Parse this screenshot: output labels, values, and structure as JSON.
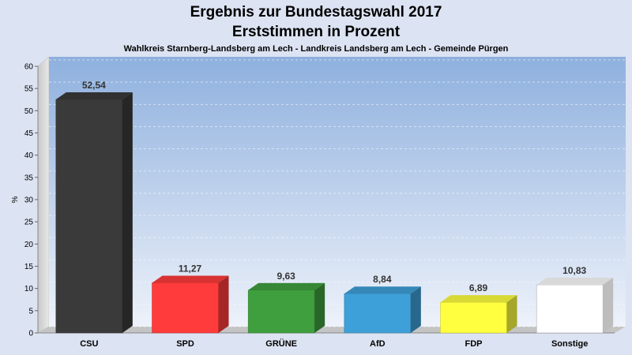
{
  "chart_data": {
    "type": "bar",
    "title": "Ergebnis zur Bundestagswahl 2017",
    "subtitle": "Erststimmen in Prozent",
    "subtitle2": "Wahlkreis Starnberg-Landsberg am Lech - Landkreis Landsberg am Lech - Gemeinde Pürgen",
    "ylabel": "%",
    "ylim": [
      0,
      60
    ],
    "yticks": [
      "0",
      "5",
      "10",
      "15",
      "20",
      "25",
      "30",
      "35",
      "40",
      "45",
      "50",
      "55",
      "60"
    ],
    "grid": true,
    "categories": [
      "CSU",
      "SPD",
      "GRÜNE",
      "AfD",
      "FDP",
      "Sonstige"
    ],
    "values": [
      52.54,
      11.27,
      9.63,
      8.84,
      6.89,
      10.83
    ],
    "value_labels": [
      "52,54",
      "11,27",
      "9,63",
      "8,84",
      "6,89",
      "10,83"
    ],
    "colors": [
      "#3a3a3a",
      "#ff3b3b",
      "#3f9f3f",
      "#3ea0d8",
      "#ffff40",
      "#ffffff"
    ]
  }
}
